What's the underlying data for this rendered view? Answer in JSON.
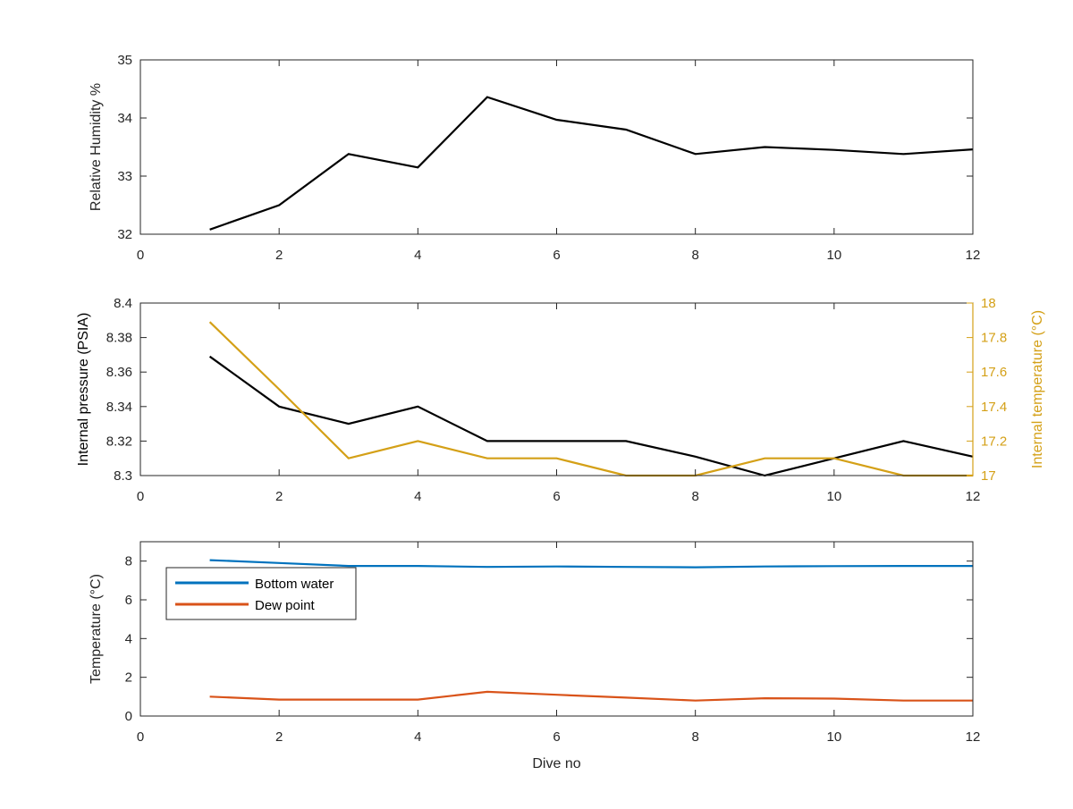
{
  "chart_data": [
    {
      "type": "line",
      "title": "",
      "xlabel": "",
      "ylabel": "Relative Humidity %",
      "xlim": [
        0,
        12
      ],
      "ylim": [
        32,
        35
      ],
      "xticks": [
        "0",
        "2",
        "4",
        "6",
        "8",
        "10",
        "12"
      ],
      "yticks": [
        "32",
        "33",
        "34",
        "35"
      ],
      "grid": false,
      "x": [
        1,
        2,
        3,
        4,
        5,
        6,
        7,
        8,
        9,
        10,
        11,
        12
      ],
      "series": [
        {
          "values": [
            32.08,
            32.5,
            33.38,
            33.15,
            34.36,
            33.97,
            33.8,
            33.38,
            33.5,
            33.45,
            33.38,
            33.46
          ],
          "color": "#000000"
        }
      ]
    },
    {
      "type": "line",
      "title": "",
      "xlabel": "",
      "ylabel": "Internal pressure (PSIA)",
      "ylabel_right": "Internal temperature (°C)",
      "xlim": [
        0,
        12
      ],
      "ylim": [
        8.3,
        8.4
      ],
      "ylim_right": [
        17,
        18
      ],
      "xticks": [
        "0",
        "2",
        "4",
        "6",
        "8",
        "10",
        "12"
      ],
      "yticks": [
        "8.3",
        "8.32",
        "8.34",
        "8.36",
        "8.38",
        "8.4"
      ],
      "yticks_right": [
        "17",
        "17.2",
        "17.4",
        "17.6",
        "17.8",
        "18"
      ],
      "grid": false,
      "x": [
        1,
        2,
        3,
        4,
        5,
        6,
        7,
        8,
        9,
        10,
        11,
        12
      ],
      "series": [
        {
          "axis": "left",
          "values": [
            8.369,
            8.34,
            8.33,
            8.34,
            8.32,
            8.32,
            8.32,
            8.311,
            8.3,
            8.31,
            8.32,
            8.311
          ],
          "color": "#000000"
        },
        {
          "axis": "right",
          "values": [
            17.89,
            17.5,
            17.1,
            17.2,
            17.1,
            17.1,
            17.0,
            17.0,
            17.1,
            17.1,
            17.0,
            17.0
          ],
          "color": "#d4a017"
        }
      ]
    },
    {
      "type": "line",
      "title": "",
      "xlabel": "Dive no",
      "ylabel": "Temperature (°C)",
      "xlim": [
        0,
        12
      ],
      "ylim": [
        0,
        9
      ],
      "xticks": [
        "0",
        "2",
        "4",
        "6",
        "8",
        "10",
        "12"
      ],
      "yticks": [
        "0",
        "2",
        "4",
        "6",
        "8"
      ],
      "grid": false,
      "legend_position": "upper-left",
      "x": [
        1,
        2,
        3,
        4,
        5,
        6,
        7,
        8,
        9,
        10,
        11,
        12
      ],
      "series": [
        {
          "name": "Bottom water",
          "values": [
            8.05,
            7.9,
            7.75,
            7.75,
            7.7,
            7.72,
            7.7,
            7.68,
            7.72,
            7.74,
            7.75,
            7.75
          ],
          "color": "#0072bd"
        },
        {
          "name": "Dew point",
          "values": [
            1.0,
            0.85,
            0.85,
            0.85,
            1.25,
            1.1,
            0.95,
            0.8,
            0.92,
            0.9,
            0.8,
            0.8
          ],
          "color": "#d95319"
        }
      ]
    }
  ]
}
